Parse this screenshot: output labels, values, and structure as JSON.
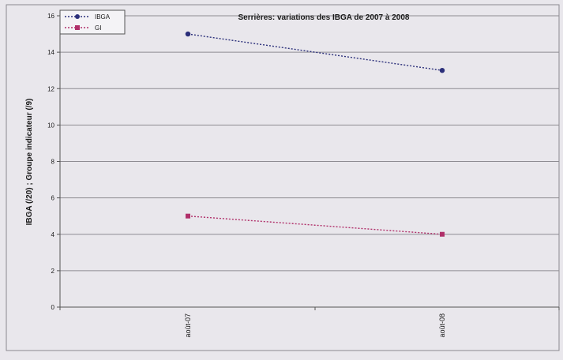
{
  "chart_data": {
    "type": "line",
    "title": "Serrières: variations des IBGA de 2007 à 2008",
    "ylabel": "IBGA (/20) ; Groupe indicateur (/9)",
    "xlabel": "",
    "categories": [
      "août-07",
      "août-08"
    ],
    "ylim": [
      0,
      16
    ],
    "yticks": [
      0,
      2,
      4,
      6,
      8,
      10,
      12,
      14,
      16
    ],
    "grid": true,
    "legend_position": "top-left",
    "series": [
      {
        "name": "IBGA",
        "values": [
          15,
          13
        ],
        "color": "#2b2f7a",
        "marker": "circle",
        "dash": "dotted"
      },
      {
        "name": "GI",
        "values": [
          5,
          4
        ],
        "color": "#b0306a",
        "marker": "square",
        "dash": "dotted"
      }
    ]
  }
}
